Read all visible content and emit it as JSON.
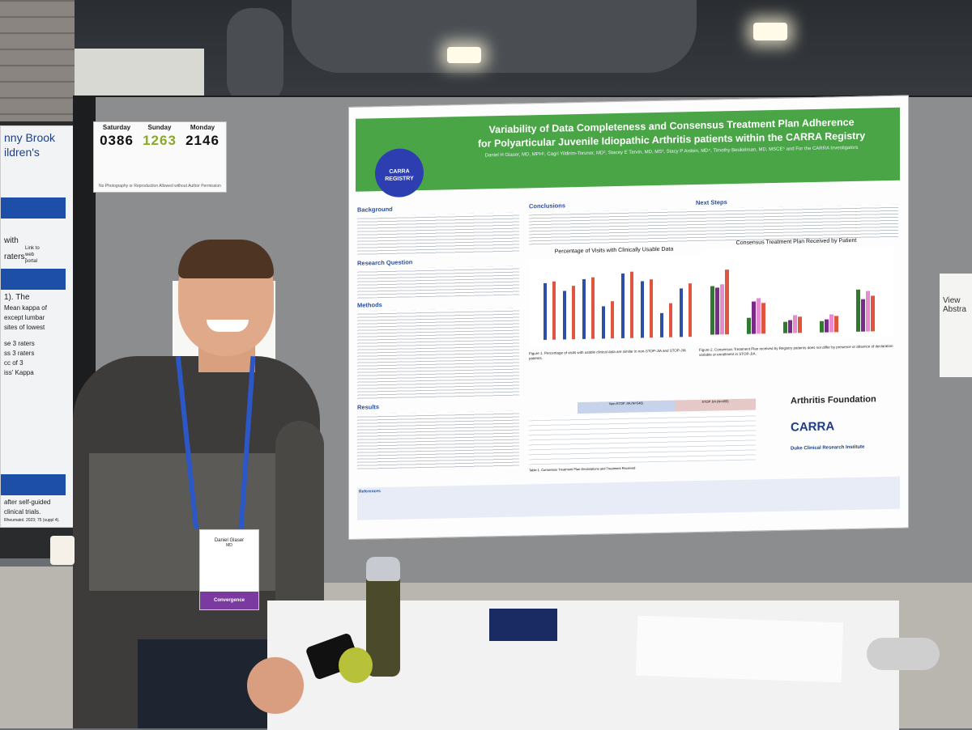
{
  "counters": {
    "items": [
      {
        "day": "Saturday",
        "number": "0386",
        "color": "#111111"
      },
      {
        "day": "Sunday",
        "number": "1263",
        "color": "#8aa82a"
      },
      {
        "day": "Monday",
        "number": "2146",
        "color": "#111111"
      }
    ],
    "notice": "No Photography or Reproduction Allowed without Author Permission"
  },
  "left_poster": {
    "lines": [
      "nny Brook",
      "ildren's",
      "Link to",
      "web",
      "portal",
      "with",
      "raters.",
      "1). The",
      "Mean kappa of",
      "except lumbar",
      "sites of lowest",
      "se 3 raters",
      "ss 3 raters",
      "cc of 3",
      "iss' Kappa",
      "after self-guided",
      "clinical trials.",
      "Rheumatol. 2023; 75 (suppl 4)."
    ]
  },
  "poster": {
    "title_line1": "Variability of Data Completeness and Consensus Treatment Plan Adherence",
    "title_line2": "for Polyarticular Juvenile Idiopathic Arthritis patients within the CARRA Registry",
    "authors": "Daniel H Glaser, MD, MPH¹, Cagri Yildirim-Toruner, MD², Stacey E Tarvin, MD, MS³, Stacy P Ardoin, MD⁴, Timothy Beukelman, MD, MSCE⁵ and For the CARRA Investigators",
    "logo_text": "CARRA REGISTRY",
    "background_head": "Background",
    "rq_head": "Research Question",
    "methods_head": "Methods",
    "results_head": "Results",
    "conclusions_head": "Conclusions",
    "next_steps_head": "Next Steps",
    "chart1_title": "Percentage of Visits with Clinically Usable Data",
    "chart2_title": "Consensus Treatment Plan Received by Patient",
    "fig1_caption": "Figure 1. Percentage of visits with usable clinical data are similar in non-STOP-JIA and STOP-JIA patients.",
    "fig2_caption": "Figure 2. Consensus Treatment Plan received by Registry patients does not differ by presence or absence of declaration variable or enrollment in STOP-JIA.",
    "table_caption": "Table 1. Consensus Treatment Plan Declarations and Treatment Received",
    "table_hdr_nonstop": "Non-STOP JIA (N=546)",
    "table_hdr_stop": "STOP JIA (N=400)",
    "references_head": "References",
    "af_logo": "Arthritis Foundation",
    "carra_logo": "CARRA",
    "duke_logo": "Duke Clinical Research Institute"
  },
  "side_paper_right": "View Abstra",
  "badge": {
    "name": "Daniel Glaser",
    "line": "MD",
    "event": "Convergence"
  }
}
